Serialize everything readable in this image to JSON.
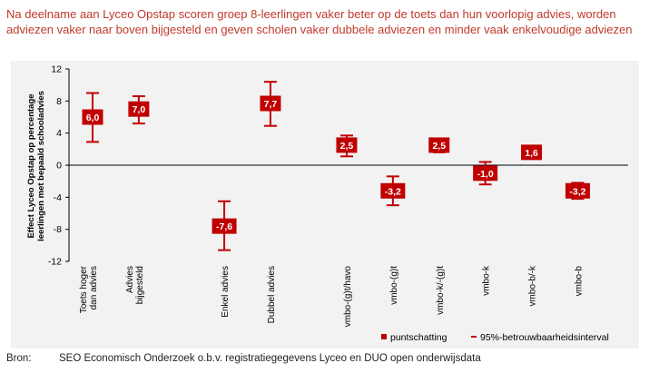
{
  "title": "Na deelname aan Lyceo Opstap scoren groep 8-leerlingen vaker beter op de toets dan hun voorlopig advies, worden adviezen vaker naar boven bijgesteld en geven scholen vaker dubbele adviezen en minder vaak enkelvoudige adviezen",
  "source": {
    "label": "Bron:",
    "text": "SEO Economisch Onderzoek o.b.v. registratiegegevens Lyceo en DUO open onderwijsdata"
  },
  "colors": {
    "accent": "#c00000",
    "plot_bg": "#f2f2f2",
    "title": "#c0392b"
  },
  "chart_data": {
    "type": "scatter",
    "ylabel": "Effect Lyceo Opstap op percentage leerlingen met bepaald schooladvies",
    "ylim": [
      -12,
      12
    ],
    "yticks": [
      12,
      8,
      4,
      0,
      -4,
      -8,
      -12
    ],
    "categories": [
      "Toets hoger dan advies",
      "Advies bijgesteld",
      "Enkel advies",
      "Dubbel advies",
      "vmbo-(g)t/havo",
      "vmbo-(g)t",
      "vmbo-k/-(g)t",
      "vmbo-k",
      "vmbo-b/-k",
      "vmbo-b"
    ],
    "x_positions": [
      1,
      2,
      3.85,
      4.85,
      6.5,
      7.5,
      8.5,
      9.5,
      10.5,
      11.5
    ],
    "points": [
      {
        "category": "Toets hoger dan advies",
        "value": 6.0,
        "label": "6,0",
        "ci": [
          2.9,
          9.0
        ]
      },
      {
        "category": "Advies bijgesteld",
        "value": 7.0,
        "label": "7,0",
        "ci": [
          5.2,
          8.6
        ]
      },
      {
        "category": "Enkel advies",
        "value": -7.6,
        "label": "-7,6",
        "ci": [
          -10.6,
          -4.5
        ]
      },
      {
        "category": "Dubbel advies",
        "value": 7.7,
        "label": "7,7",
        "ci": [
          4.9,
          10.4
        ]
      },
      {
        "category": "vmbo-(g)t/havo",
        "value": 2.5,
        "label": "2,5",
        "ci": [
          1.1,
          3.7
        ]
      },
      {
        "category": "vmbo-(g)t",
        "value": -3.2,
        "label": "-3,2",
        "ci": [
          -5.0,
          -1.4
        ]
      },
      {
        "category": "vmbo-k/-(g)t",
        "value": 2.5,
        "label": "2,5",
        "ci": [
          1.6,
          3.3
        ]
      },
      {
        "category": "vmbo-k",
        "value": -1.0,
        "label": "-1,0",
        "ci": [
          -2.4,
          0.4
        ]
      },
      {
        "category": "vmbo-b/-k",
        "value": 1.6,
        "label": "1,6",
        "ci": [
          0.8,
          2.3
        ]
      },
      {
        "category": "vmbo-b",
        "value": -3.2,
        "label": "-3,2",
        "ci": [
          -4.2,
          -2.2
        ]
      }
    ],
    "legend": [
      {
        "symbol": "square",
        "label": "puntschatting"
      },
      {
        "symbol": "dash",
        "label": "95%-betrouwbaarheidsinterval"
      }
    ],
    "legend_position": "bottom-right"
  }
}
